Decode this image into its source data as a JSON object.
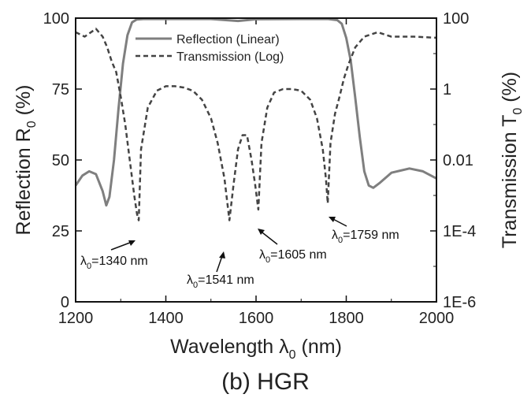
{
  "chart_data": {
    "type": "line",
    "caption": "(b) HGR",
    "xlabel": {
      "main": "Wavelength λ",
      "sub": "0",
      "tail": " (nm)"
    },
    "ylabel_left": {
      "main": "Reflection R",
      "sub": "0",
      "tail": " (%)"
    },
    "ylabel_right": {
      "main": "Transmission T",
      "sub": "0",
      "tail": " (%)"
    },
    "xlim": [
      1200,
      2000
    ],
    "ylim_left": [
      0,
      100
    ],
    "ylim_right_log10": [
      -6,
      2
    ],
    "x_ticks": [
      "1200",
      "1400",
      "1600",
      "1800",
      "2000"
    ],
    "y_left_ticks": [
      "0",
      "25",
      "50",
      "75",
      "100"
    ],
    "y_right_ticks": [
      "1E-6",
      "1E-4",
      "0.01",
      "1",
      "100"
    ],
    "legend": {
      "position": "top-center",
      "entries": [
        "Reflection (Linear)",
        "Transmission (Log)"
      ]
    },
    "series": [
      {
        "name": "Reflection (Linear)",
        "axis": "left",
        "style": "solid",
        "color": "#7f7f7f",
        "x": [
          1200,
          1215,
          1230,
          1245,
          1260,
          1268,
          1275,
          1285,
          1295,
          1305,
          1315,
          1325,
          1335,
          1350,
          1400,
          1500,
          1560,
          1600,
          1700,
          1760,
          1780,
          1790,
          1800,
          1810,
          1820,
          1830,
          1840,
          1850,
          1860,
          1875,
          1900,
          1940,
          1970,
          2000
        ],
        "y": [
          41,
          44.5,
          46,
          45,
          39,
          34,
          37,
          50,
          68,
          84,
          94,
          98.5,
          99.5,
          99.7,
          99.7,
          99.7,
          99,
          99.6,
          99.7,
          99.7,
          99.3,
          98,
          93,
          85,
          72,
          58,
          46,
          41,
          40.2,
          42,
          45.5,
          47,
          46,
          43.5
        ]
      },
      {
        "name": "Transmission (Log)",
        "axis": "right",
        "style": "dashed",
        "color": "#444444",
        "x": [
          1200,
          1220,
          1245,
          1260,
          1270,
          1280,
          1290,
          1300,
          1310,
          1320,
          1330,
          1336,
          1340,
          1345,
          1360,
          1380,
          1400,
          1420,
          1440,
          1460,
          1480,
          1500,
          1515,
          1530,
          1541,
          1550,
          1560,
          1570,
          1580,
          1590,
          1598,
          1605,
          1612,
          1625,
          1640,
          1660,
          1680,
          1700,
          1720,
          1735,
          1748,
          1755,
          1759,
          1765,
          1775,
          1785,
          1795,
          1805,
          1820,
          1840,
          1870,
          1900,
          1950,
          2000
        ],
        "y": [
          40,
          30,
          50,
          30,
          15,
          6,
          3,
          0.6,
          0.1,
          0.01,
          0.001,
          0.0003,
          0.0002,
          0.02,
          0.3,
          0.9,
          1.2,
          1.2,
          1.1,
          0.9,
          0.5,
          0.15,
          0.03,
          0.003,
          0.0002,
          0.002,
          0.02,
          0.05,
          0.05,
          0.01,
          0.002,
          0.0004,
          0.03,
          0.3,
          0.8,
          1,
          1,
          0.9,
          0.5,
          0.15,
          0.02,
          0.003,
          0.0006,
          0.03,
          0.2,
          0.6,
          2,
          5,
          15,
          30,
          40,
          30,
          30,
          28
        ]
      }
    ],
    "annotations": [
      {
        "text": "λ",
        "sub": "0",
        "tail": "=1340 nm",
        "x": 1340,
        "value": 0.0002
      },
      {
        "text": "λ",
        "sub": "0",
        "tail": "=1541 nm",
        "x": 1541,
        "value": 0.0002
      },
      {
        "text": "λ",
        "sub": "0",
        "tail": "=1605 nm",
        "x": 1605,
        "value": 0.0004
      },
      {
        "text": "λ",
        "sub": "0",
        "tail": "=1759 nm",
        "x": 1759,
        "value": 0.0006
      }
    ]
  }
}
